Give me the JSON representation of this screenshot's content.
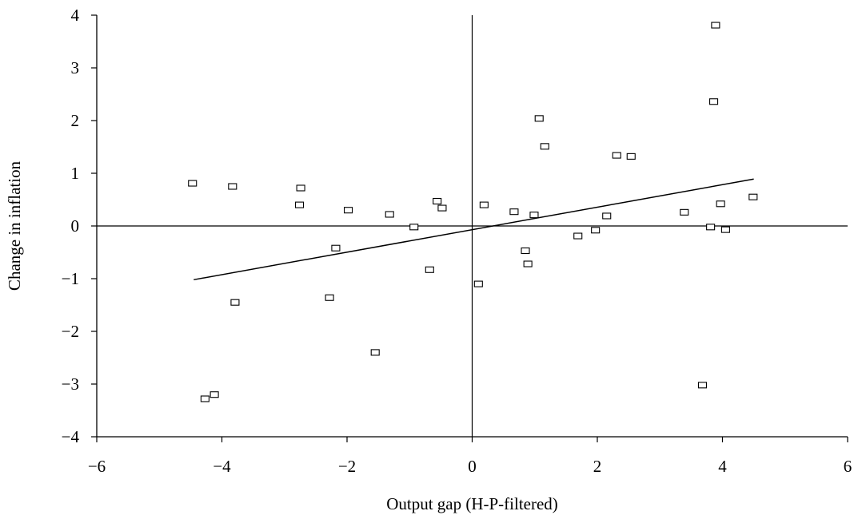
{
  "chart_data": {
    "type": "scatter",
    "xlabel": "Output gap (H-P-filtered)",
    "ylabel": "Change in inflation",
    "xlim": [
      -6,
      6
    ],
    "ylim": [
      -4,
      4
    ],
    "xticks": [
      -6,
      -4,
      -2,
      0,
      2,
      4,
      6
    ],
    "yticks": [
      -4,
      -3,
      -2,
      -1,
      0,
      1,
      2,
      3,
      4
    ],
    "xtick_labels": [
      "−6",
      "−4",
      "−2",
      "0",
      "2",
      "4",
      "6"
    ],
    "ytick_labels": [
      "−4",
      "−3",
      "−2",
      "−1",
      "0",
      "1",
      "2",
      "3",
      "4"
    ],
    "reference_lines": {
      "x": 0,
      "y": 0
    },
    "marker": "open-square",
    "grid": false,
    "series": [
      {
        "points": [
          {
            "x": -4.47,
            "y": 0.81
          },
          {
            "x": -3.83,
            "y": 0.75
          },
          {
            "x": -3.79,
            "y": -1.45
          },
          {
            "x": -2.74,
            "y": 0.72
          },
          {
            "x": -2.76,
            "y": 0.4
          },
          {
            "x": -4.27,
            "y": -3.28
          },
          {
            "x": -4.12,
            "y": -3.2
          },
          {
            "x": -2.28,
            "y": -1.36
          },
          {
            "x": -2.18,
            "y": -0.42
          },
          {
            "x": -1.98,
            "y": 0.3
          },
          {
            "x": -1.55,
            "y": -2.4
          },
          {
            "x": -1.32,
            "y": 0.22
          },
          {
            "x": -0.93,
            "y": -0.02
          },
          {
            "x": -0.68,
            "y": -0.83
          },
          {
            "x": -0.56,
            "y": 0.47
          },
          {
            "x": -0.48,
            "y": 0.34
          },
          {
            "x": 0.1,
            "y": -1.1
          },
          {
            "x": 0.19,
            "y": 0.4
          },
          {
            "x": 0.67,
            "y": 0.27
          },
          {
            "x": 0.85,
            "y": -0.47
          },
          {
            "x": 0.89,
            "y": -0.72
          },
          {
            "x": 0.99,
            "y": 0.21
          },
          {
            "x": 1.07,
            "y": 2.04
          },
          {
            "x": 1.16,
            "y": 1.51
          },
          {
            "x": 1.69,
            "y": -0.19
          },
          {
            "x": 1.97,
            "y": -0.08
          },
          {
            "x": 2.15,
            "y": 0.19
          },
          {
            "x": 2.31,
            "y": 1.34
          },
          {
            "x": 2.54,
            "y": 1.32
          },
          {
            "x": 3.39,
            "y": 0.26
          },
          {
            "x": 3.68,
            "y": -3.02
          },
          {
            "x": 3.81,
            "y": -0.02
          },
          {
            "x": 3.86,
            "y": 2.36
          },
          {
            "x": 3.89,
            "y": 3.81
          },
          {
            "x": 3.97,
            "y": 0.42
          },
          {
            "x": 4.05,
            "y": -0.07
          },
          {
            "x": 4.49,
            "y": 0.55
          }
        ]
      }
    ],
    "trend_line": {
      "x": [
        -4.45,
        4.5
      ],
      "y": [
        -1.02,
        0.89
      ]
    }
  }
}
